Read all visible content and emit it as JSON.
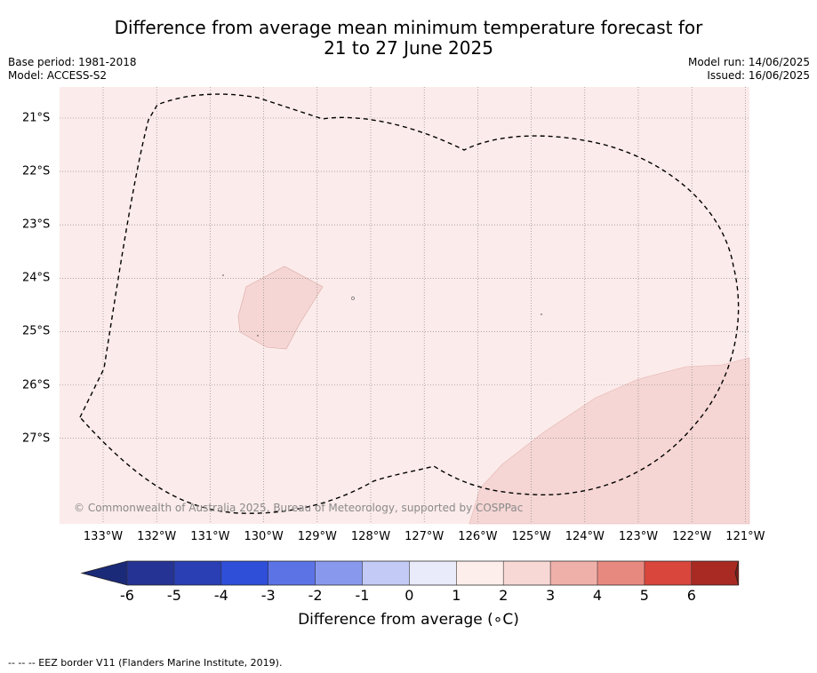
{
  "title_line1": "Difference from average mean minimum temperature forecast for",
  "title_line2": "21 to 27 June 2025",
  "base_period": "Base period: 1981-2018",
  "model": "Model: ACCESS-S2",
  "model_run": "Model run: 14/06/2025",
  "issued": "Issued: 16/06/2025",
  "copyright": "© Commonwealth of Australia 2025, Bureau of Meteorology, supported by COSPPac",
  "footer_note": "-- -- -- EEZ border V11 (Flanders Marine Institute, 2019).",
  "map": {
    "longitude_labels": [
      "133°W",
      "132°W",
      "131°W",
      "130°W",
      "129°W",
      "128°W",
      "127°W",
      "126°W",
      "125°W",
      "124°W",
      "123°W",
      "122°W",
      "121°W"
    ],
    "latitude_labels": [
      "21°S",
      "22°S",
      "23°S",
      "24°S",
      "25°S",
      "26°S",
      "27°S"
    ],
    "background_class": "0 to 1",
    "shaded_regions_class": "1 to 2",
    "eez_border_style": "dashed"
  },
  "colorbar": {
    "label": "Difference from average (∘C)",
    "ticks": [
      "-6",
      "-5",
      "-4",
      "-3",
      "-2",
      "-1",
      "0",
      "1",
      "2",
      "3",
      "4",
      "5",
      "6"
    ],
    "colors": [
      "#253494",
      "#2a3fb3",
      "#2f4fd9",
      "#5c73e6",
      "#8899ed",
      "#c3caf5",
      "#e9ebfb",
      "#fdeeec",
      "#f8d8d5",
      "#f0b0aa",
      "#e88980",
      "#d9463c",
      "#a82a23"
    ],
    "under_color": "#1a2a78",
    "over_color": "#7a1d18"
  }
}
